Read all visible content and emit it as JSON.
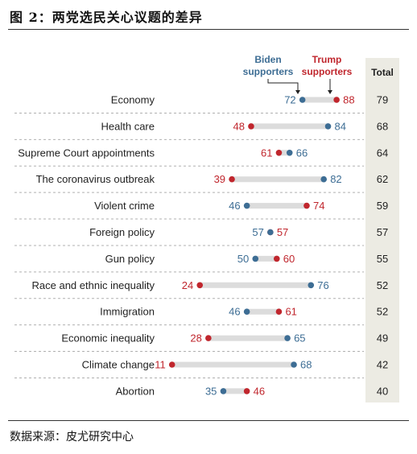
{
  "figure_title": "图 2：两党选民关心议题的差异",
  "source": "数据来源：皮尤研究中心",
  "colors": {
    "biden": "#3d6d94",
    "trump": "#c0262d",
    "bar": "#dcdcdc",
    "total_bg": "#ecebe3"
  },
  "chart_data": {
    "type": "dumbbell",
    "legend": {
      "biden_line1": "Biden",
      "biden_line2": "supporters",
      "trump_line1": "Trump",
      "trump_line2": "supporters"
    },
    "total_header": "Total",
    "categories": [
      "Economy",
      "Health care",
      "Supreme Court appointments",
      "The coronavirus outbreak",
      "Violent crime",
      "Foreign policy",
      "Gun policy",
      "Race and ethnic inequality",
      "Immigration",
      "Economic inequality",
      "Climate change",
      "Abortion"
    ],
    "series": [
      {
        "name": "Biden supporters",
        "values": [
          72,
          84,
          66,
          82,
          46,
          57,
          50,
          76,
          46,
          65,
          68,
          35
        ]
      },
      {
        "name": "Trump supporters",
        "values": [
          88,
          48,
          61,
          39,
          74,
          57,
          60,
          24,
          61,
          28,
          11,
          46
        ]
      }
    ],
    "total": [
      79,
      68,
      64,
      62,
      59,
      57,
      55,
      52,
      52,
      49,
      42,
      40
    ]
  }
}
